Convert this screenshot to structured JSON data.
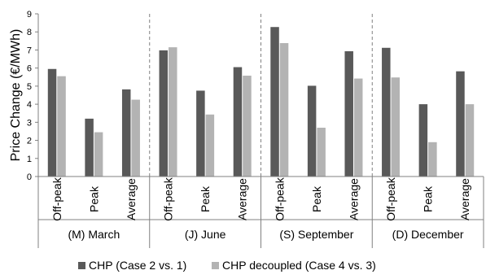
{
  "chart_data": {
    "type": "bar",
    "ylabel": "Price Change (€/MWh)",
    "ylim": [
      0,
      9
    ],
    "yticks": [
      0,
      1,
      2,
      3,
      4,
      5,
      6,
      7,
      8,
      9
    ],
    "groups": [
      {
        "label": "(M) March",
        "categories": [
          "Off-peak",
          "Peak",
          "Average"
        ]
      },
      {
        "label": "(J) June",
        "categories": [
          "Off-peak",
          "Peak",
          "Average"
        ]
      },
      {
        "label": "(S) September",
        "categories": [
          "Off-peak",
          "Peak",
          "Average"
        ]
      },
      {
        "label": "(D) December",
        "categories": [
          "Off-peak",
          "Peak",
          "Average"
        ]
      }
    ],
    "series": [
      {
        "name": "CHP (Case 2 vs. 1)",
        "color": "#595959",
        "values": [
          5.95,
          3.2,
          4.82,
          6.98,
          4.75,
          6.05,
          8.27,
          5.02,
          6.93,
          7.12,
          4.0,
          5.82
        ]
      },
      {
        "name": "CHP decoupled (Case 4 vs. 3)",
        "color": "#b3b3b3",
        "values": [
          5.55,
          2.45,
          4.25,
          7.15,
          3.43,
          5.58,
          7.38,
          2.7,
          5.42,
          5.48,
          1.9,
          4.0
        ]
      }
    ],
    "legend_position": "bottom",
    "grid": false
  }
}
